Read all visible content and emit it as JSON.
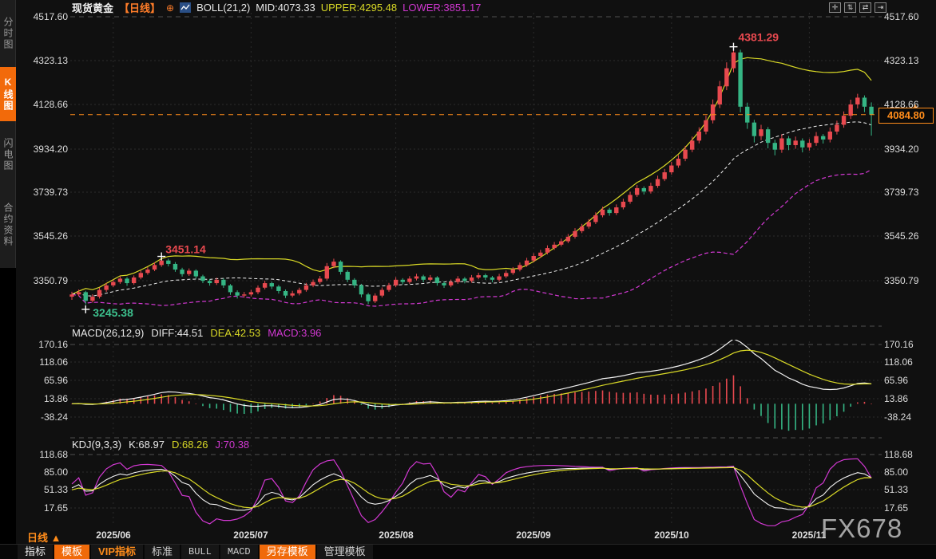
{
  "header": {
    "symbol": "现货黄金",
    "period_tag": "【日线】",
    "add_icon": "⊕",
    "boll_label": "BOLL(21,2)",
    "mid": "MID:4073.33",
    "upper": "UPPER:4295.48",
    "lower": "LOWER:3851.17"
  },
  "sidebar": {
    "items": [
      {
        "label": "分时图",
        "active": false
      },
      {
        "label": "K线图",
        "active": true
      },
      {
        "label": "闪电图",
        "active": false
      },
      {
        "label": "合约资料",
        "active": false
      }
    ]
  },
  "top_icons": [
    {
      "name": "pan-tool",
      "glyph": "✛"
    },
    {
      "name": "vertical-scale",
      "glyph": "⇅"
    },
    {
      "name": "horizontal-scale",
      "glyph": "⇄"
    },
    {
      "name": "shift-right",
      "glyph": "⇥"
    }
  ],
  "main_axis": [
    "4517.60",
    "4323.13",
    "4128.66",
    "3934.20",
    "3739.73",
    "3545.26",
    "3350.79"
  ],
  "macd_panel": {
    "title": "MACD(26,12,9)",
    "diff": "DIFF:44.51",
    "dea": "DEA:42.53",
    "macd": "MACD:3.96",
    "axis": [
      "170.16",
      "118.06",
      "65.96",
      "13.86",
      "-38.24"
    ]
  },
  "kdj_panel": {
    "title": "KDJ(9,3,3)",
    "k": "K:68.97",
    "d": "D:68.26",
    "j": "J:70.38",
    "axis": [
      "118.68",
      "85.00",
      "51.33",
      "17.65"
    ]
  },
  "annotations": {
    "high": "4381.29",
    "mid_high": "3451.14",
    "low": "3245.38",
    "last_price": "4084.80"
  },
  "x_axis": {
    "period_label": "日线",
    "arrow": "▲",
    "labels": [
      "2025/06",
      "2025/07",
      "2025/08",
      "2025/09",
      "2025/10",
      "2025/11"
    ]
  },
  "bottom_toolbar": {
    "items": [
      {
        "label": "指标",
        "style": "white"
      },
      {
        "label": "模板",
        "style": "orange-bg"
      },
      {
        "label": "VIP指标",
        "style": "orange-text"
      },
      {
        "label": "标准",
        "style": "plain"
      },
      {
        "label": "BULL",
        "style": "mono"
      },
      {
        "label": "MACD",
        "style": "mono"
      },
      {
        "label": "另存模板",
        "style": "orange-bg"
      },
      {
        "label": "管理模板",
        "style": "plain"
      }
    ]
  },
  "watermark": "FX678",
  "colors": {
    "up": "#e8494f",
    "down": "#35b584",
    "boll_upper": "#d9d926",
    "boll_mid": "#f2f2f2",
    "boll_lower": "#d238d2",
    "accent_orange": "#ff8c1a",
    "grid": "#2b2b2b",
    "panel_sep": "#4f4f4f",
    "annotation_red": "#e8494f",
    "annotation_green": "#3dc08d"
  },
  "chart_data": {
    "type": "candlestick+indicators",
    "title": "现货黄金 日线",
    "indicators": {
      "boll": [
        21,
        2
      ],
      "macd": [
        26,
        12,
        9
      ],
      "kdj": [
        9,
        3,
        3
      ]
    },
    "main_axis_values": [
      4517.6,
      4323.13,
      4128.66,
      3934.2,
      3739.73,
      3545.26,
      3350.79
    ],
    "macd_axis_values": [
      170.16,
      118.06,
      65.96,
      13.86,
      -38.24
    ],
    "kdj_axis_values": [
      118.68,
      85.0,
      51.33,
      17.65
    ],
    "last_price": 4084.8,
    "high_annotation": 4381.29,
    "mid_high_annotation": 3451.14,
    "low_annotation": 3245.38,
    "month_labels": [
      "2025/06",
      "2025/07",
      "2025/08",
      "2025/09",
      "2025/10",
      "2025/11"
    ],
    "month_start_indices": [
      6,
      26,
      47,
      67,
      87,
      107
    ],
    "candles": [
      [
        3280,
        3302,
        3266,
        3290
      ],
      [
        3290,
        3312,
        3282,
        3300
      ],
      [
        3300,
        3306,
        3245.38,
        3262
      ],
      [
        3262,
        3291,
        3254,
        3280
      ],
      [
        3280,
        3320,
        3272,
        3310
      ],
      [
        3310,
        3341,
        3301,
        3330
      ],
      [
        3330,
        3356,
        3322,
        3345
      ],
      [
        3345,
        3371,
        3337,
        3360
      ],
      [
        3360,
        3367,
        3328,
        3340
      ],
      [
        3340,
        3374,
        3333,
        3365
      ],
      [
        3365,
        3396,
        3357,
        3385
      ],
      [
        3385,
        3411,
        3377,
        3400
      ],
      [
        3400,
        3432,
        3393,
        3420
      ],
      [
        3420,
        3451.14,
        3412,
        3440
      ],
      [
        3440,
        3448,
        3414,
        3425
      ],
      [
        3425,
        3433,
        3390,
        3400
      ],
      [
        3400,
        3408,
        3369,
        3380
      ],
      [
        3380,
        3405,
        3372,
        3395
      ],
      [
        3395,
        3401,
        3360,
        3370
      ],
      [
        3370,
        3377,
        3340,
        3350
      ],
      [
        3350,
        3358,
        3329,
        3340
      ],
      [
        3340,
        3364,
        3332,
        3355
      ],
      [
        3355,
        3361,
        3319,
        3330
      ],
      [
        3330,
        3336,
        3288,
        3300
      ],
      [
        3300,
        3308,
        3272,
        3285
      ],
      [
        3285,
        3301,
        3276,
        3290
      ],
      [
        3290,
        3311,
        3281,
        3300
      ],
      [
        3300,
        3330,
        3291,
        3320
      ],
      [
        3320,
        3351,
        3312,
        3340
      ],
      [
        3340,
        3347,
        3314,
        3325
      ],
      [
        3325,
        3332,
        3294,
        3305
      ],
      [
        3305,
        3312,
        3274,
        3285
      ],
      [
        3285,
        3306,
        3277,
        3295
      ],
      [
        3295,
        3320,
        3286,
        3310
      ],
      [
        3310,
        3341,
        3302,
        3330
      ],
      [
        3330,
        3356,
        3322,
        3345
      ],
      [
        3345,
        3372,
        3337,
        3360
      ],
      [
        3360,
        3429,
        3352,
        3415
      ],
      [
        3415,
        3448,
        3406,
        3435
      ],
      [
        3435,
        3441,
        3378,
        3390
      ],
      [
        3390,
        3397,
        3344,
        3355
      ],
      [
        3355,
        3362,
        3319,
        3330
      ],
      [
        3330,
        3337,
        3277,
        3290
      ],
      [
        3290,
        3297,
        3247,
        3260
      ],
      [
        3260,
        3295,
        3252,
        3285
      ],
      [
        3285,
        3321,
        3277,
        3310
      ],
      [
        3310,
        3341,
        3302,
        3330
      ],
      [
        3330,
        3366,
        3322,
        3355
      ],
      [
        3355,
        3362,
        3334,
        3345
      ],
      [
        3345,
        3371,
        3337,
        3360
      ],
      [
        3360,
        3381,
        3352,
        3370
      ],
      [
        3370,
        3377,
        3344,
        3355
      ],
      [
        3355,
        3376,
        3347,
        3365
      ],
      [
        3365,
        3371,
        3329,
        3340
      ],
      [
        3340,
        3348,
        3319,
        3330
      ],
      [
        3330,
        3356,
        3322,
        3345
      ],
      [
        3345,
        3371,
        3337,
        3360
      ],
      [
        3360,
        3367,
        3339,
        3350
      ],
      [
        3350,
        3376,
        3342,
        3365
      ],
      [
        3365,
        3386,
        3357,
        3375
      ],
      [
        3375,
        3382,
        3354,
        3365
      ],
      [
        3365,
        3372,
        3344,
        3355
      ],
      [
        3355,
        3381,
        3347,
        3370
      ],
      [
        3370,
        3396,
        3362,
        3385
      ],
      [
        3385,
        3411,
        3377,
        3400
      ],
      [
        3400,
        3431,
        3392,
        3420
      ],
      [
        3420,
        3452,
        3412,
        3440
      ],
      [
        3440,
        3472,
        3432,
        3460
      ],
      [
        3460,
        3487,
        3452,
        3475
      ],
      [
        3475,
        3507,
        3467,
        3495
      ],
      [
        3495,
        3522,
        3487,
        3510
      ],
      [
        3510,
        3537,
        3502,
        3525
      ],
      [
        3525,
        3557,
        3517,
        3545
      ],
      [
        3545,
        3583,
        3537,
        3570
      ],
      [
        3570,
        3602,
        3561,
        3590
      ],
      [
        3590,
        3623,
        3581,
        3610
      ],
      [
        3610,
        3653,
        3601,
        3640
      ],
      [
        3640,
        3678,
        3631,
        3665
      ],
      [
        3665,
        3673,
        3638,
        3650
      ],
      [
        3650,
        3688,
        3641,
        3675
      ],
      [
        3675,
        3713,
        3666,
        3700
      ],
      [
        3700,
        3744,
        3691,
        3730
      ],
      [
        3730,
        3774,
        3721,
        3760
      ],
      [
        3760,
        3768,
        3732,
        3745
      ],
      [
        3745,
        3784,
        3736,
        3770
      ],
      [
        3770,
        3815,
        3761,
        3800
      ],
      [
        3800,
        3845,
        3791,
        3830
      ],
      [
        3830,
        3876,
        3820,
        3860
      ],
      [
        3860,
        3906,
        3850,
        3890
      ],
      [
        3890,
        3947,
        3879,
        3930
      ],
      [
        3930,
        3988,
        3919,
        3970
      ],
      [
        3970,
        4029,
        3958,
        4010
      ],
      [
        4010,
        4080,
        3998,
        4060
      ],
      [
        4060,
        4152,
        4046,
        4130
      ],
      [
        4130,
        4234,
        4114,
        4210
      ],
      [
        4210,
        4316,
        4193,
        4290
      ],
      [
        4290,
        4381.29,
        4272,
        4360
      ],
      [
        4360,
        4372,
        4095,
        4120
      ],
      [
        4120,
        4138,
        4022,
        4050
      ],
      [
        4050,
        4062,
        3962,
        3990
      ],
      [
        3990,
        4040,
        3972,
        4020
      ],
      [
        4020,
        4030,
        3936,
        3960
      ],
      [
        3960,
        3974,
        3905,
        3930
      ],
      [
        3930,
        3998,
        3916,
        3980
      ],
      [
        3980,
        3990,
        3928,
        3950
      ],
      [
        3950,
        3988,
        3934,
        3970
      ],
      [
        3970,
        3980,
        3918,
        3940
      ],
      [
        3940,
        3977,
        3926,
        3960
      ],
      [
        3960,
        4008,
        3947,
        3990
      ],
      [
        3990,
        3999,
        3957,
        3975
      ],
      [
        3975,
        4028,
        3962,
        4010
      ],
      [
        4010,
        4058,
        3997,
        4040
      ],
      [
        4040,
        4099,
        4027,
        4080
      ],
      [
        4080,
        4151,
        4066,
        4130
      ],
      [
        4130,
        4177,
        4112,
        4160
      ],
      [
        4160,
        4170,
        4096,
        4120
      ],
      [
        4120,
        4139,
        3992,
        4084.8
      ]
    ]
  }
}
